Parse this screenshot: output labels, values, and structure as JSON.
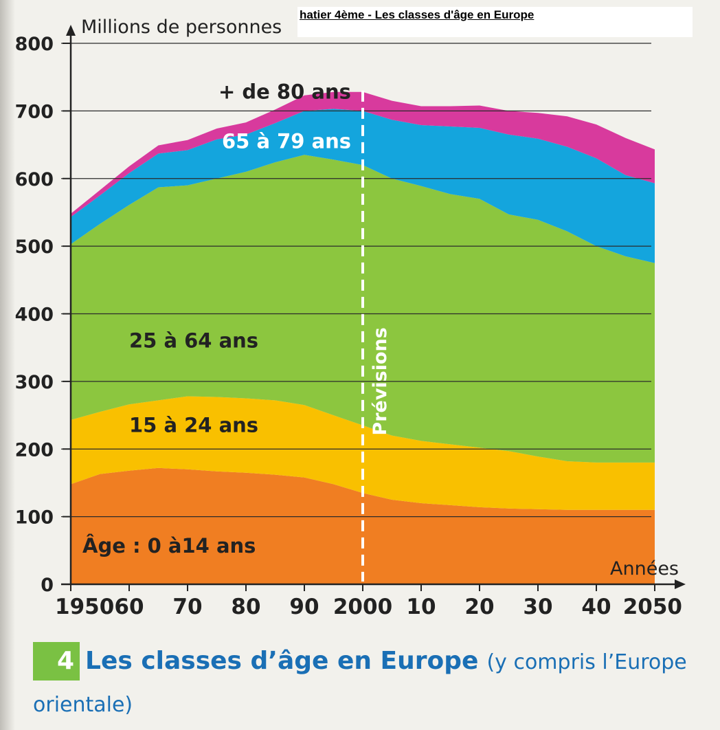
{
  "caption": "hatier 4ème - Les classes d'âge en Europe",
  "figure": {
    "number": "4",
    "title": "Les classes d’âge en Europe",
    "subtitle": "(y compris l’Europe",
    "subtitle_cont": "orientale)"
  },
  "chart_data": {
    "type": "area",
    "stacked": true,
    "ylabel": "Millions de personnes",
    "xlabel": "Années",
    "ylim": [
      0,
      800
    ],
    "yticks": [
      0,
      100,
      200,
      300,
      400,
      500,
      600,
      700,
      800
    ],
    "xlim": [
      1950,
      2050
    ],
    "xticks": [
      1950,
      1960,
      1970,
      1980,
      1990,
      2000,
      2010,
      2020,
      2030,
      2040,
      2050
    ],
    "xtick_labels": [
      "1950",
      "60",
      "70",
      "80",
      "90",
      "2000",
      "10",
      "20",
      "30",
      "40",
      "2050"
    ],
    "x": [
      1950,
      1955,
      1960,
      1965,
      1970,
      1975,
      1980,
      1985,
      1990,
      1995,
      2000,
      2005,
      2010,
      2015,
      2020,
      2025,
      2030,
      2035,
      2040,
      2045,
      2050
    ],
    "series": [
      {
        "name": "Âge : 0 à14 ans",
        "color": "#f07e22",
        "values": [
          148,
          163,
          168,
          172,
          170,
          167,
          165,
          162,
          158,
          148,
          135,
          125,
          120,
          117,
          114,
          112,
          111,
          110,
          110,
          110,
          110
        ]
      },
      {
        "name": "15 à 24 ans",
        "color": "#f9c000",
        "values": [
          95,
          92,
          98,
          100,
          108,
          110,
          110,
          110,
          107,
          102,
          100,
          95,
          92,
          90,
          88,
          85,
          78,
          72,
          70,
          70,
          70
        ]
      },
      {
        "name": "25 à 64 ans",
        "color": "#8cc63f",
        "values": [
          260,
          278,
          295,
          315,
          312,
          323,
          335,
          352,
          370,
          378,
          385,
          380,
          377,
          370,
          368,
          350,
          350,
          340,
          320,
          305,
          295
        ]
      },
      {
        "name": "65 à 79 ans",
        "color": "#14a5dd",
        "values": [
          40,
          42,
          47,
          50,
          52,
          58,
          55,
          58,
          65,
          75,
          80,
          87,
          90,
          100,
          105,
          118,
          120,
          125,
          130,
          120,
          118
        ]
      },
      {
        "name": "+ de 80 ans",
        "color": "#d83a9d",
        "values": [
          5,
          8,
          10,
          12,
          15,
          16,
          18,
          20,
          23,
          25,
          28,
          28,
          28,
          30,
          33,
          35,
          38,
          45,
          50,
          55,
          50
        ]
      }
    ],
    "annotation": {
      "text": "Prévisions",
      "x": 2000
    },
    "grid": true
  }
}
